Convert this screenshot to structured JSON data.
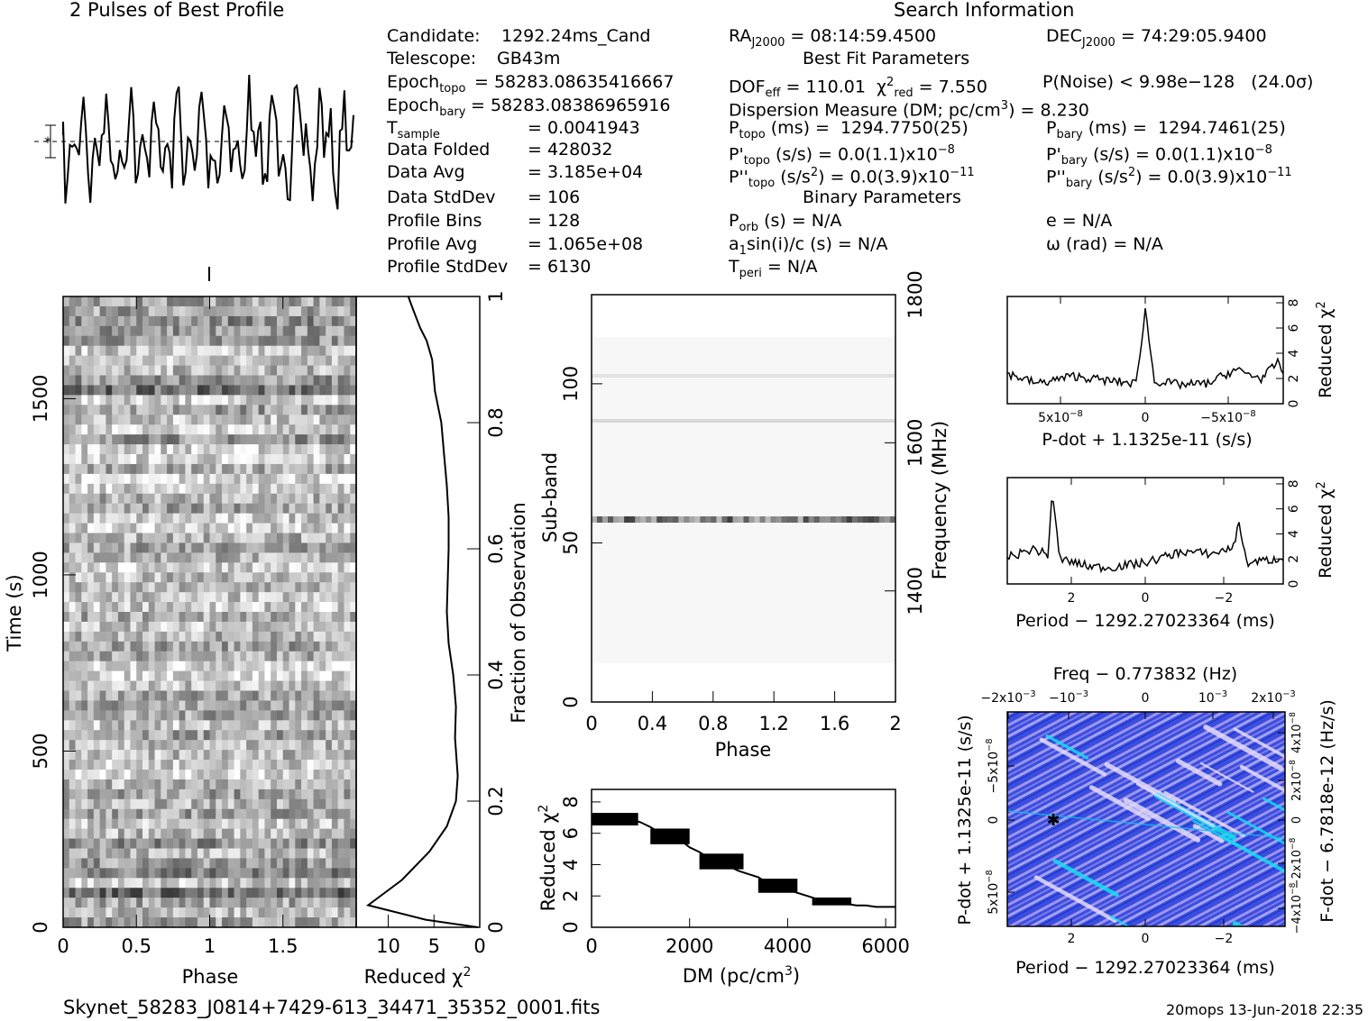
{
  "titles": {
    "profile": "2 Pulses of Best Profile",
    "search": "Search Information",
    "best_fit": "Best Fit Parameters",
    "binary": "Binary Parameters"
  },
  "info_left": [
    {
      "label": "Candidate:",
      "sub": "",
      "value": "1292.24ms_Cand"
    },
    {
      "label": "Telescope:",
      "sub": "",
      "value": "GB43m"
    },
    {
      "label": "Epoch",
      "sub": "topo",
      "value": "= 58283.08635416667"
    },
    {
      "label": "Epoch",
      "sub": "bary",
      "value": "= 58283.08386965916"
    },
    {
      "label": "T",
      "sub": "sample",
      "value": "=   0.0041943"
    },
    {
      "label": "Data Folded",
      "sub": "",
      "value": "=   428032"
    },
    {
      "label": "Data Avg",
      "sub": "",
      "value": "=   3.185e+04"
    },
    {
      "label": "Data StdDev",
      "sub": "",
      "value": "=   106"
    },
    {
      "label": "Profile Bins",
      "sub": "",
      "value": "=   128"
    },
    {
      "label": "Profile Avg",
      "sub": "",
      "value": "=   1.065e+08"
    },
    {
      "label": "Profile StdDev",
      "sub": "",
      "value": "=   6130"
    }
  ],
  "info_mid": {
    "ra": "RA_J2000 = 08:14:59.4500",
    "dec": "DEC_J2000 = 74:29:05.9400",
    "dof": "DOF_eff = 110.01",
    "chi2": "χ2_red = 7.550",
    "pnoise": "P(Noise) < 9.98e-128",
    "sigma": "(24.0σ)",
    "dm": "Dispersion Measure (DM; pc/cm3) = 8.230",
    "ptopo": "P_topo (ms) =  1294.7750(25)",
    "pbary": "P_bary (ms) =  1294.7461(25)",
    "pdtopo": "P'_topo (s/s) = 0.0(1.1)x10-8",
    "pdbary": "P'_bary (s/s) = 0.0(1.1)x10-8",
    "pddtopo": "P''_topo (s/s2) = 0.0(3.9)x10-11",
    "pddbary": "P''_bary (s/s2) = 0.0(3.9)x10-11",
    "porb": "P_orb (s) = N/A",
    "ecc": "e = N/A",
    "asini": "a1sin(i)/c (s) = N/A",
    "omega": "ω (rad) = N/A",
    "tperi": "T_peri = N/A"
  },
  "footer": {
    "filename": "Skynet_58283_J0814+7429-613_34471_35352_0001.fits",
    "stamp": "20mops 13-Jun-2018 22:35"
  },
  "chart_data": [
    {
      "id": "time-phase",
      "type": "heatmap",
      "xlabel": "Phase",
      "ylabel": "Time (s)",
      "xlim": [
        0,
        2
      ],
      "ylim": [
        0,
        1790
      ],
      "x_ticks": [
        "0",
        "0.5",
        "1",
        "1.5"
      ],
      "y_ticks": [
        "0",
        "500",
        "1000",
        "1500"
      ]
    },
    {
      "id": "time-chi2",
      "type": "line",
      "xlabel": "Reduced χ2",
      "ylabel": "Fraction of Observation",
      "x_ticks": [
        "10",
        "5",
        "0"
      ],
      "y_ticks": [
        "0",
        "0.2",
        "0.4",
        "0.6",
        "0.8",
        "1"
      ],
      "xlim": [
        13.5,
        0
      ],
      "ylim": [
        0,
        1
      ],
      "x": [
        0.2,
        5.9,
        12.2,
        8.5,
        5.5,
        3.6,
        2.6,
        2.4,
        2.7,
        2.6,
        2.9,
        3.4,
        3.6,
        3.5,
        3.4,
        3.4,
        3.6,
        3.9,
        4.2,
        4.9,
        5.2,
        5.8,
        6.5,
        7.3,
        7.8
      ],
      "y": [
        0.0,
        0.012,
        0.035,
        0.075,
        0.12,
        0.16,
        0.2,
        0.24,
        0.3,
        0.35,
        0.4,
        0.45,
        0.5,
        0.55,
        0.6,
        0.65,
        0.7,
        0.75,
        0.8,
        0.85,
        0.9,
        0.93,
        0.95,
        0.98,
        1.0
      ]
    },
    {
      "id": "subband-phase",
      "type": "heatmap",
      "xlabel": "Phase",
      "ylabel": "Sub-band",
      "y2label": "Frequency (MHz)",
      "xlim": [
        0,
        2
      ],
      "ylim": [
        0,
        128
      ],
      "x_ticks": [
        "0",
        "0.4",
        "0.8",
        "1.2",
        "1.6",
        "2"
      ],
      "y_ticks": [
        "0",
        "50",
        "100"
      ],
      "y2_ticks": [
        "1400",
        "1600",
        "1800"
      ]
    },
    {
      "id": "dm-chi2",
      "type": "line",
      "xlabel": "DM (pc/cm3)",
      "ylabel": "Reduced χ2",
      "xlim": [
        0,
        6200
      ],
      "ylim": [
        0,
        8.8
      ],
      "x_ticks": [
        "0",
        "2000",
        "4000",
        "6000"
      ],
      "y_ticks": [
        "0",
        "2",
        "4",
        "6",
        "8"
      ],
      "x": [
        0,
        200,
        400,
        600,
        800,
        1000,
        1200,
        1400,
        1600,
        1800,
        2000,
        2200,
        2400,
        2600,
        2800,
        3000,
        3200,
        3400,
        3600,
        3800,
        4000,
        4200,
        4400,
        4600,
        4800,
        5000,
        5200,
        5400,
        5600,
        5800,
        6000,
        6200
      ],
      "y": [
        7.0,
        6.6,
        7.0,
        7.1,
        6.9,
        6.7,
        6.4,
        6.0,
        5.8,
        5.6,
        5.1,
        4.8,
        4.4,
        4.1,
        3.9,
        3.6,
        3.4,
        3.2,
        2.8,
        2.6,
        2.4,
        2.2,
        2.0,
        1.8,
        1.7,
        1.6,
        1.5,
        1.4,
        1.4,
        1.3,
        1.3,
        1.3
      ]
    },
    {
      "id": "pdot-chi2",
      "type": "line",
      "xlabel": "P-dot + 1.1325e-11 (s/s)",
      "ylabel": "Reduced χ2",
      "ylim": [
        0,
        8.5
      ],
      "x_ticks": [
        "5x10-8",
        "0",
        "-5x10-8"
      ],
      "y_ticks": [
        "0",
        "2",
        "4",
        "6",
        "8"
      ],
      "x": [
        7.7e-08,
        6e-08,
        4e-08,
        2e-08,
        5e-09,
        0,
        -5e-09,
        -2e-08,
        -3.5e-08,
        -5e-08,
        -6.5e-08,
        -7.5e-08
      ],
      "y": [
        2.4,
        1.6,
        2.2,
        1.8,
        1.6,
        7.5,
        1.8,
        1.5,
        1.6,
        2.7,
        2.0,
        3.4
      ]
    },
    {
      "id": "period-chi2",
      "type": "line",
      "xlabel": "Period − 1292.27023364 (ms)",
      "ylabel": "Reduced χ2",
      "ylim": [
        0,
        8.5
      ],
      "x_ticks": [
        "2",
        "0",
        "-2"
      ],
      "y_ticks": [
        "0",
        "2",
        "4",
        "6",
        "8"
      ],
      "x": [
        3.6,
        3.0,
        2.6,
        2.5,
        2.3,
        1.5,
        1.0,
        0.0,
        -1.0,
        -1.8,
        -2.4,
        -2.5,
        -2.7,
        -3.6
      ],
      "y": [
        2.2,
        2.8,
        2.3,
        7.6,
        2.0,
        1.4,
        1.3,
        1.7,
        2.6,
        2.4,
        3.0,
        5.4,
        1.7,
        2.0
      ]
    },
    {
      "id": "p-pdot",
      "type": "heatmap",
      "xlabel": "Period − 1292.27023364 (ms)",
      "ylabel": "P-dot + 1.1325e-11 (s/s)",
      "x2label": "Freq − 0.773832 (Hz)",
      "y2label": "F-dot − 6.7818e-12 (Hz/s)",
      "x_ticks": [
        "2",
        "0",
        "-2"
      ],
      "y_ticks": [
        "-5x10-8",
        "0",
        "5x10-8"
      ],
      "x2_ticks": [
        "-2x10-3",
        "-10-3",
        "0",
        "10-3",
        "2x10-3"
      ],
      "y2_ticks": [
        "4x10-8",
        "2x10-8",
        "0",
        "-2x10-8",
        "-4x10-8"
      ],
      "best": {
        "period": 2.5,
        "pdot": 0
      }
    }
  ],
  "colors": {
    "ink": "#000000",
    "ppdot_base": "#2b3fd6",
    "ppdot_light": "#c9b8f0",
    "ppdot_hot": "#12e0f0"
  }
}
